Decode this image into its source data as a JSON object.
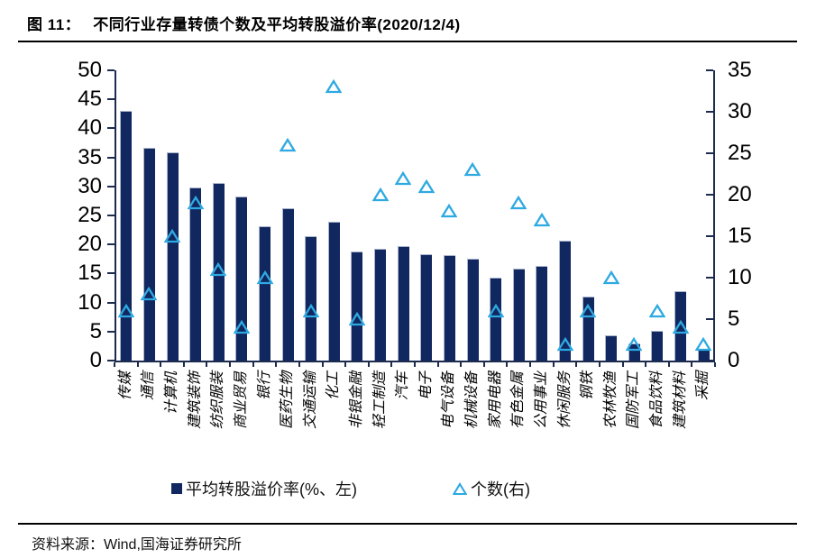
{
  "header": {
    "title_prefix": "图 11：",
    "title_text": "不同行业存量转债个数及平均转股溢价率(2020/12/4)"
  },
  "legend": {
    "premium_label": "平均转股溢价率(%、左)",
    "count_label": "个数(右)"
  },
  "footer": {
    "source": "资料来源：Wind,国海证券研究所"
  },
  "colors": {
    "bar": "#10275f",
    "marker": "#2fa9e1",
    "axis": "#1c2b4e",
    "text": "#000000"
  },
  "chart_data": {
    "type": "bar",
    "title": "不同行业存量转债个数及平均转股溢价率(2020/12/4)",
    "categories": [
      "传媒",
      "通信",
      "计算机",
      "建筑装饰",
      "纺织服装",
      "商业贸易",
      "银行",
      "医药生物",
      "交通运输",
      "化工",
      "非银金融",
      "轻工制造",
      "汽车",
      "电子",
      "电气设备",
      "机械设备",
      "家用电器",
      "有色金属",
      "公用事业",
      "休闲服务",
      "钢铁",
      "农林牧渔",
      "国防军工",
      "食品饮料",
      "建筑材料",
      "采掘"
    ],
    "series": [
      {
        "name": "平均转股溢价率(%、左)",
        "type": "bar",
        "axis": "left",
        "values": [
          43.0,
          36.7,
          35.9,
          29.8,
          30.6,
          28.2,
          23.2,
          26.3,
          21.5,
          23.9,
          18.8,
          19.2,
          19.7,
          18.3,
          18.1,
          17.5,
          14.3,
          15.9,
          16.3,
          20.6,
          11.0,
          4.4,
          3.0,
          5.2,
          11.9,
          1.9
        ]
      },
      {
        "name": "个数(右)",
        "type": "scatter",
        "marker": "open-triangle",
        "axis": "right",
        "values": [
          6,
          8,
          15,
          19,
          11,
          4,
          10,
          26,
          6,
          33,
          5,
          20,
          22,
          21,
          18,
          23,
          6,
          19,
          17,
          2,
          6,
          10,
          2,
          6,
          4,
          2
        ]
      }
    ],
    "left_axis": {
      "range": [
        0,
        50
      ],
      "step": 5,
      "tick_labels": [
        "0",
        "5",
        "10",
        "15",
        "20",
        "25",
        "30",
        "35",
        "40",
        "45",
        "50"
      ]
    },
    "right_axis": {
      "range": [
        0,
        35
      ],
      "step": 5,
      "tick_labels": [
        "0",
        "5",
        "10",
        "15",
        "20",
        "25",
        "30",
        "35"
      ]
    },
    "grid": false,
    "legend_position": "bottom"
  }
}
